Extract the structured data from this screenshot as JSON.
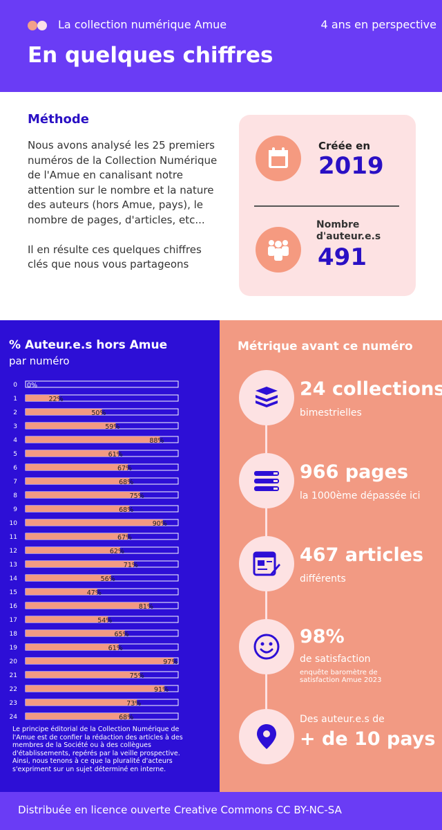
{
  "header": {
    "collection_name": "La collection numérique Amue",
    "perspective": "4 ans en perspective",
    "title": "En quelques chiffres"
  },
  "method": {
    "title": "Méthode",
    "paragraph1": "Nous avons analysé les 25 premiers numéros de la Collection Numérique de l'Amue en canalisant notre attention sur le nombre et la nature des auteurs (hors Amue, pays), le nombre de pages, d'articles, etc...",
    "paragraph2": "Il en résulte ces quelques chiffres clés que nous vous partageons"
  },
  "stats": {
    "created_label": "Créée en",
    "created_value": "2019",
    "authors_label_line1": "Nombre",
    "authors_label_line2": "d'auteur.e.s",
    "authors_value": "491",
    "icons": [
      "calendar-icon",
      "people-icon"
    ]
  },
  "chart_data": {
    "type": "bar",
    "orientation": "horizontal",
    "title": "% Auteur.e.s hors Amue",
    "subtitle": "par numéro",
    "categories": [
      "0",
      "1",
      "2",
      "3",
      "4",
      "5",
      "6",
      "7",
      "8",
      "9",
      "10",
      "11",
      "12",
      "13",
      "14",
      "15",
      "16",
      "17",
      "18",
      "19",
      "20",
      "21",
      "22",
      "23",
      "24"
    ],
    "values": [
      0,
      22,
      50,
      59,
      88,
      61,
      67,
      68,
      75,
      68,
      90,
      67,
      62,
      71,
      56,
      47,
      81,
      54,
      65,
      61,
      97,
      75,
      91,
      73,
      68
    ],
    "unit": "%",
    "xlim": [
      0,
      100
    ],
    "bar_color": "#f29a83",
    "track_border_color": "#ffffff",
    "background": "#2d0fd6"
  },
  "chart_note": "Le principe éditorial de la Collection Numérique de l'Amue est de confier la rédaction des articles à des membres de la Société ou à des collègues d'établissements, repérés par la veille prospective. Ainsi, nous tenons à ce que la pluralité d'acteurs s'expriment sur un sujet déterminé en interne.",
  "metrics": {
    "title": "Métrique avant ce numéro",
    "items": [
      {
        "icon": "books-icon",
        "big": "24 collections",
        "small": "bimestrielles"
      },
      {
        "icon": "pages-stack-icon",
        "big": "966 pages",
        "small": "la 1000ème dépassée ici"
      },
      {
        "icon": "article-edit-icon",
        "big": "467 articles",
        "small": "différents"
      },
      {
        "icon": "smiley-icon",
        "big": "98%",
        "small": "de satisfaction",
        "tiny": "enquête baromètre de satisfaction Amue 2023"
      },
      {
        "icon": "location-pin-icon",
        "small": "Des auteur.e.s de",
        "big": "+ de 10 pays"
      }
    ]
  },
  "footer": {
    "license": "Distribuée en licence ouverte Creative Commons CC BY-NC-SA"
  },
  "colors": {
    "purple": "#6a3cf5",
    "deep_blue": "#2d0fd6",
    "salmon": "#f29a83",
    "light_pink": "#fde2e3",
    "title_blue": "#2a10c4"
  }
}
